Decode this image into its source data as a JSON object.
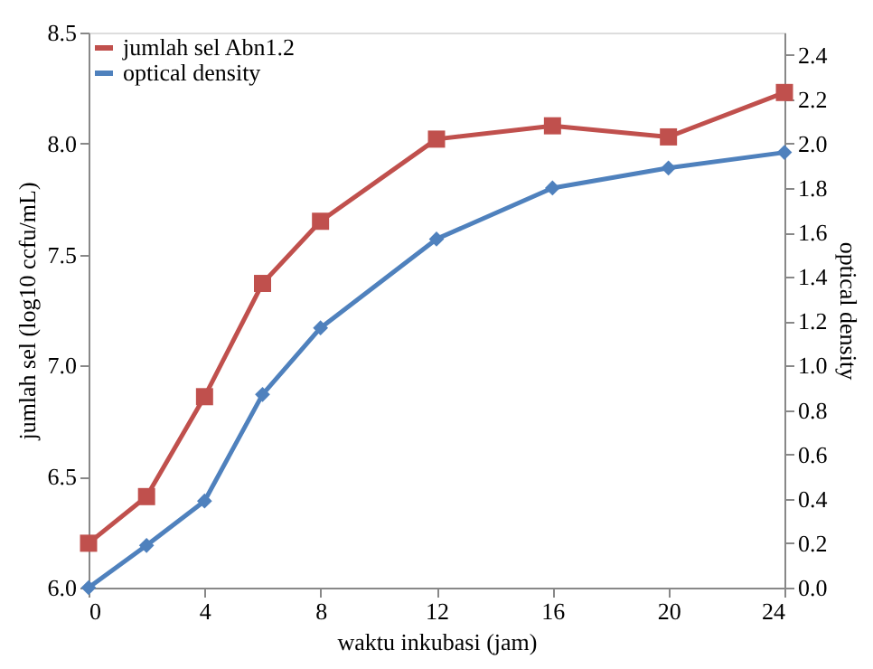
{
  "chart_data": {
    "type": "line",
    "xlabel": "waktu inkubasi (jam)",
    "ylabel": "jumlah sel (log10 ccfu/mL)",
    "y2label": "optical density",
    "x": [
      0,
      2,
      4,
      6,
      8,
      12,
      16,
      20,
      24
    ],
    "series": [
      {
        "name": "jumlah sel Abn1.2",
        "color": "#c0504d",
        "marker": "square",
        "values": [
          6.2,
          6.41,
          6.86,
          7.37,
          7.65,
          8.02,
          8.08,
          8.03,
          8.23
        ]
      },
      {
        "name": "optical density",
        "color": "#4f81bd",
        "marker": "diamond",
        "axis": "y2",
        "values": [
          0.0,
          0.19,
          0.39,
          0.87,
          1.17,
          1.57,
          1.8,
          1.89,
          1.96
        ]
      }
    ],
    "xlim": [
      0,
      24
    ],
    "xticks": [
      0,
      4,
      8,
      12,
      16,
      20,
      24
    ],
    "ylim": [
      6.0,
      8.5
    ],
    "yticks": [
      {
        "value": 6,
        "label": "6.0"
      },
      {
        "value": 6.5,
        "label": "6.5"
      },
      {
        "value": 7,
        "label": "7.0"
      },
      {
        "value": 7.5,
        "label": "7.5"
      },
      {
        "value": 8,
        "label": "8.0"
      },
      {
        "value": 8.5,
        "label": "8.5"
      }
    ],
    "y2lim": [
      0,
      2.5
    ],
    "y2ticks": [
      {
        "value": 0,
        "label": "0.0"
      },
      {
        "value": 0.2,
        "label": "0.2"
      },
      {
        "value": 0.4,
        "label": "0.4"
      },
      {
        "value": 0.6,
        "label": "0.6"
      },
      {
        "value": 0.8,
        "label": "0.8"
      },
      {
        "value": 1,
        "label": "1.0"
      },
      {
        "value": 1.2,
        "label": "1.2"
      },
      {
        "value": 1.4,
        "label": "1.4"
      },
      {
        "value": 1.6,
        "label": "1.6"
      },
      {
        "value": 1.8,
        "label": "1.8"
      },
      {
        "value": 2,
        "label": "2.0"
      },
      {
        "value": 2.2,
        "label": "2.2"
      },
      {
        "value": 2.4,
        "label": "2.4"
      }
    ],
    "grid": false,
    "legend": "top left",
    "line_style": "solid"
  }
}
